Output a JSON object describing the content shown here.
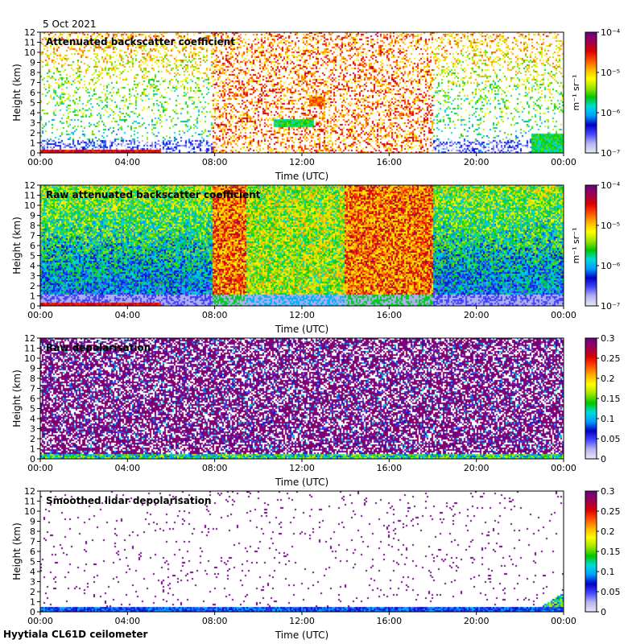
{
  "header": {
    "date": "5 Oct 2021"
  },
  "footer": {
    "instrument": "Hyytiala CL61D ceilometer"
  },
  "chart_data": [
    {
      "type": "heatmap",
      "title": "Attenuated backscatter coefficient",
      "xlabel": "Time (UTC)",
      "ylabel": "Height (km)",
      "x_ticks": [
        "00:00",
        "04:00",
        "08:00",
        "12:00",
        "16:00",
        "20:00",
        "00:00"
      ],
      "y_ticks": [
        "0",
        "1",
        "2",
        "3",
        "4",
        "5",
        "6",
        "7",
        "8",
        "9",
        "10",
        "11",
        "12"
      ],
      "xlim": [
        0,
        24
      ],
      "ylim": [
        0,
        12
      ],
      "colorbar": {
        "scale": "log",
        "range": [
          1e-07,
          0.0001
        ],
        "unit": "m⁻¹ sr⁻¹",
        "tick_labels": [
          "10⁻⁷",
          "10⁻⁶",
          "10⁻⁵",
          "10⁻⁴"
        ]
      },
      "colormap": [
        "#e6e6f5",
        "#b4b4f0",
        "#4646ff",
        "#0000c8",
        "#00a0ff",
        "#00dcdc",
        "#00c800",
        "#a0e600",
        "#ffff00",
        "#ffb400",
        "#ff5000",
        "#dc0000",
        "#a00050",
        "#6e0082"
      ],
      "features": [
        {
          "what": "surface/boundary layer",
          "t_start": 0,
          "t_end": 5.5,
          "h_top_km": 0.4,
          "level": 0.85
        },
        {
          "what": "mid-level cloud",
          "t_start": 10.7,
          "t_end": 12.5,
          "h_km": 3.0,
          "level": 0.45
        },
        {
          "what": "elevated layer",
          "t_start": 12.3,
          "t_end": 13.0,
          "h_km": 5.2,
          "level": 0.75
        },
        {
          "what": "low cloud",
          "t_start": 22.5,
          "t_end": 24.0,
          "h_top_km": 2.0,
          "level": 0.45
        }
      ]
    },
    {
      "type": "heatmap",
      "title": "Raw attenuated backscatter coefficient",
      "xlabel": "Time (UTC)",
      "ylabel": "Height (km)",
      "x_ticks": [
        "00:00",
        "04:00",
        "08:00",
        "12:00",
        "16:00",
        "20:00",
        "00:00"
      ],
      "y_ticks": [
        "0",
        "1",
        "2",
        "3",
        "4",
        "5",
        "6",
        "7",
        "8",
        "9",
        "10",
        "11",
        "12"
      ],
      "xlim": [
        0,
        24
      ],
      "ylim": [
        0,
        12
      ],
      "colorbar": {
        "scale": "log",
        "range": [
          1e-07,
          0.0001
        ],
        "unit": "m⁻¹ sr⁻¹",
        "tick_labels": [
          "10⁻⁷",
          "10⁻⁶",
          "10⁻⁵",
          "10⁻⁴"
        ]
      },
      "colormap": [
        "#e6e6f5",
        "#b4b4f0",
        "#4646ff",
        "#0000c8",
        "#00a0ff",
        "#00dcdc",
        "#00c800",
        "#a0e600",
        "#ffff00",
        "#ffb400",
        "#ff5000",
        "#dc0000",
        "#a00050",
        "#6e0082"
      ],
      "features": [
        {
          "what": "enhanced daytime noise",
          "t_start": 7.9,
          "t_end": 9.4,
          "level": 0.75
        },
        {
          "what": "enhanced daytime noise",
          "t_start": 9.4,
          "t_end": 13.9,
          "level": 0.55
        },
        {
          "what": "enhanced daytime noise",
          "t_start": 13.9,
          "t_end": 18.0,
          "level": 0.75
        },
        {
          "what": "surface layer",
          "t_start": 0,
          "t_end": 5.5,
          "h_top_km": 0.4,
          "level": 0.85
        }
      ]
    },
    {
      "type": "heatmap",
      "title": "Raw depolarisation",
      "xlabel": "Time (UTC)",
      "ylabel": "Height (km)",
      "x_ticks": [
        "00:00",
        "04:00",
        "08:00",
        "12:00",
        "16:00",
        "20:00",
        "00:00"
      ],
      "y_ticks": [
        "0",
        "1",
        "2",
        "3",
        "4",
        "5",
        "6",
        "7",
        "8",
        "9",
        "10",
        "11",
        "12"
      ],
      "xlim": [
        0,
        24
      ],
      "ylim": [
        0,
        12
      ],
      "colorbar": {
        "scale": "linear",
        "range": [
          0,
          0.3
        ],
        "tick_labels": [
          "0",
          "0.05",
          "0.1",
          "0.15",
          "0.2",
          "0.25",
          "0.3"
        ]
      },
      "colormap": [
        "#e6e6f5",
        "#b4b4f0",
        "#4646ff",
        "#0000c8",
        "#00a0ff",
        "#00dcdc",
        "#00c800",
        "#a0e600",
        "#ffff00",
        "#ffb400",
        "#ff5000",
        "#dc0000",
        "#a00050",
        "#6e0082"
      ],
      "features": [
        {
          "what": "saturated noise",
          "t_start": 0,
          "t_end": 24,
          "level": 1.0
        },
        {
          "what": "surface layer",
          "t_start": 0,
          "t_end": 24,
          "h_top_km": 0.5,
          "level": 0.3
        }
      ]
    },
    {
      "type": "heatmap",
      "title": "Smoothed lidar depolarisation",
      "xlabel": "Time (UTC)",
      "ylabel": "Height (km)",
      "x_ticks": [
        "00:00",
        "04:00",
        "08:00",
        "12:00",
        "16:00",
        "20:00",
        "00:00"
      ],
      "y_ticks": [
        "0",
        "1",
        "2",
        "3",
        "4",
        "5",
        "6",
        "7",
        "8",
        "9",
        "10",
        "11",
        "12"
      ],
      "xlim": [
        0,
        24
      ],
      "ylim": [
        0,
        12
      ],
      "colorbar": {
        "scale": "linear",
        "range": [
          0,
          0.3
        ],
        "tick_labels": [
          "0",
          "0.05",
          "0.1",
          "0.15",
          "0.2",
          "0.25",
          "0.3"
        ]
      },
      "colormap": [
        "#e6e6f5",
        "#b4b4f0",
        "#4646ff",
        "#0000c8",
        "#00a0ff",
        "#00dcdc",
        "#00c800",
        "#a0e600",
        "#ffff00",
        "#ffb400",
        "#ff5000",
        "#dc0000",
        "#a00050",
        "#6e0082"
      ],
      "features": [
        {
          "what": "surface layer",
          "t_start": 0,
          "t_end": 24,
          "h_top_km": 0.6,
          "level": 0.25
        },
        {
          "what": "elevated depolarising layer",
          "t_start": 1.8,
          "t_end": 4.2,
          "h_top_km": 0.25,
          "level": 0.7
        },
        {
          "what": "low cloud",
          "t_start": 22.5,
          "t_end": 24.0,
          "h_top_km": 2.0,
          "level": 0.35
        }
      ]
    }
  ]
}
